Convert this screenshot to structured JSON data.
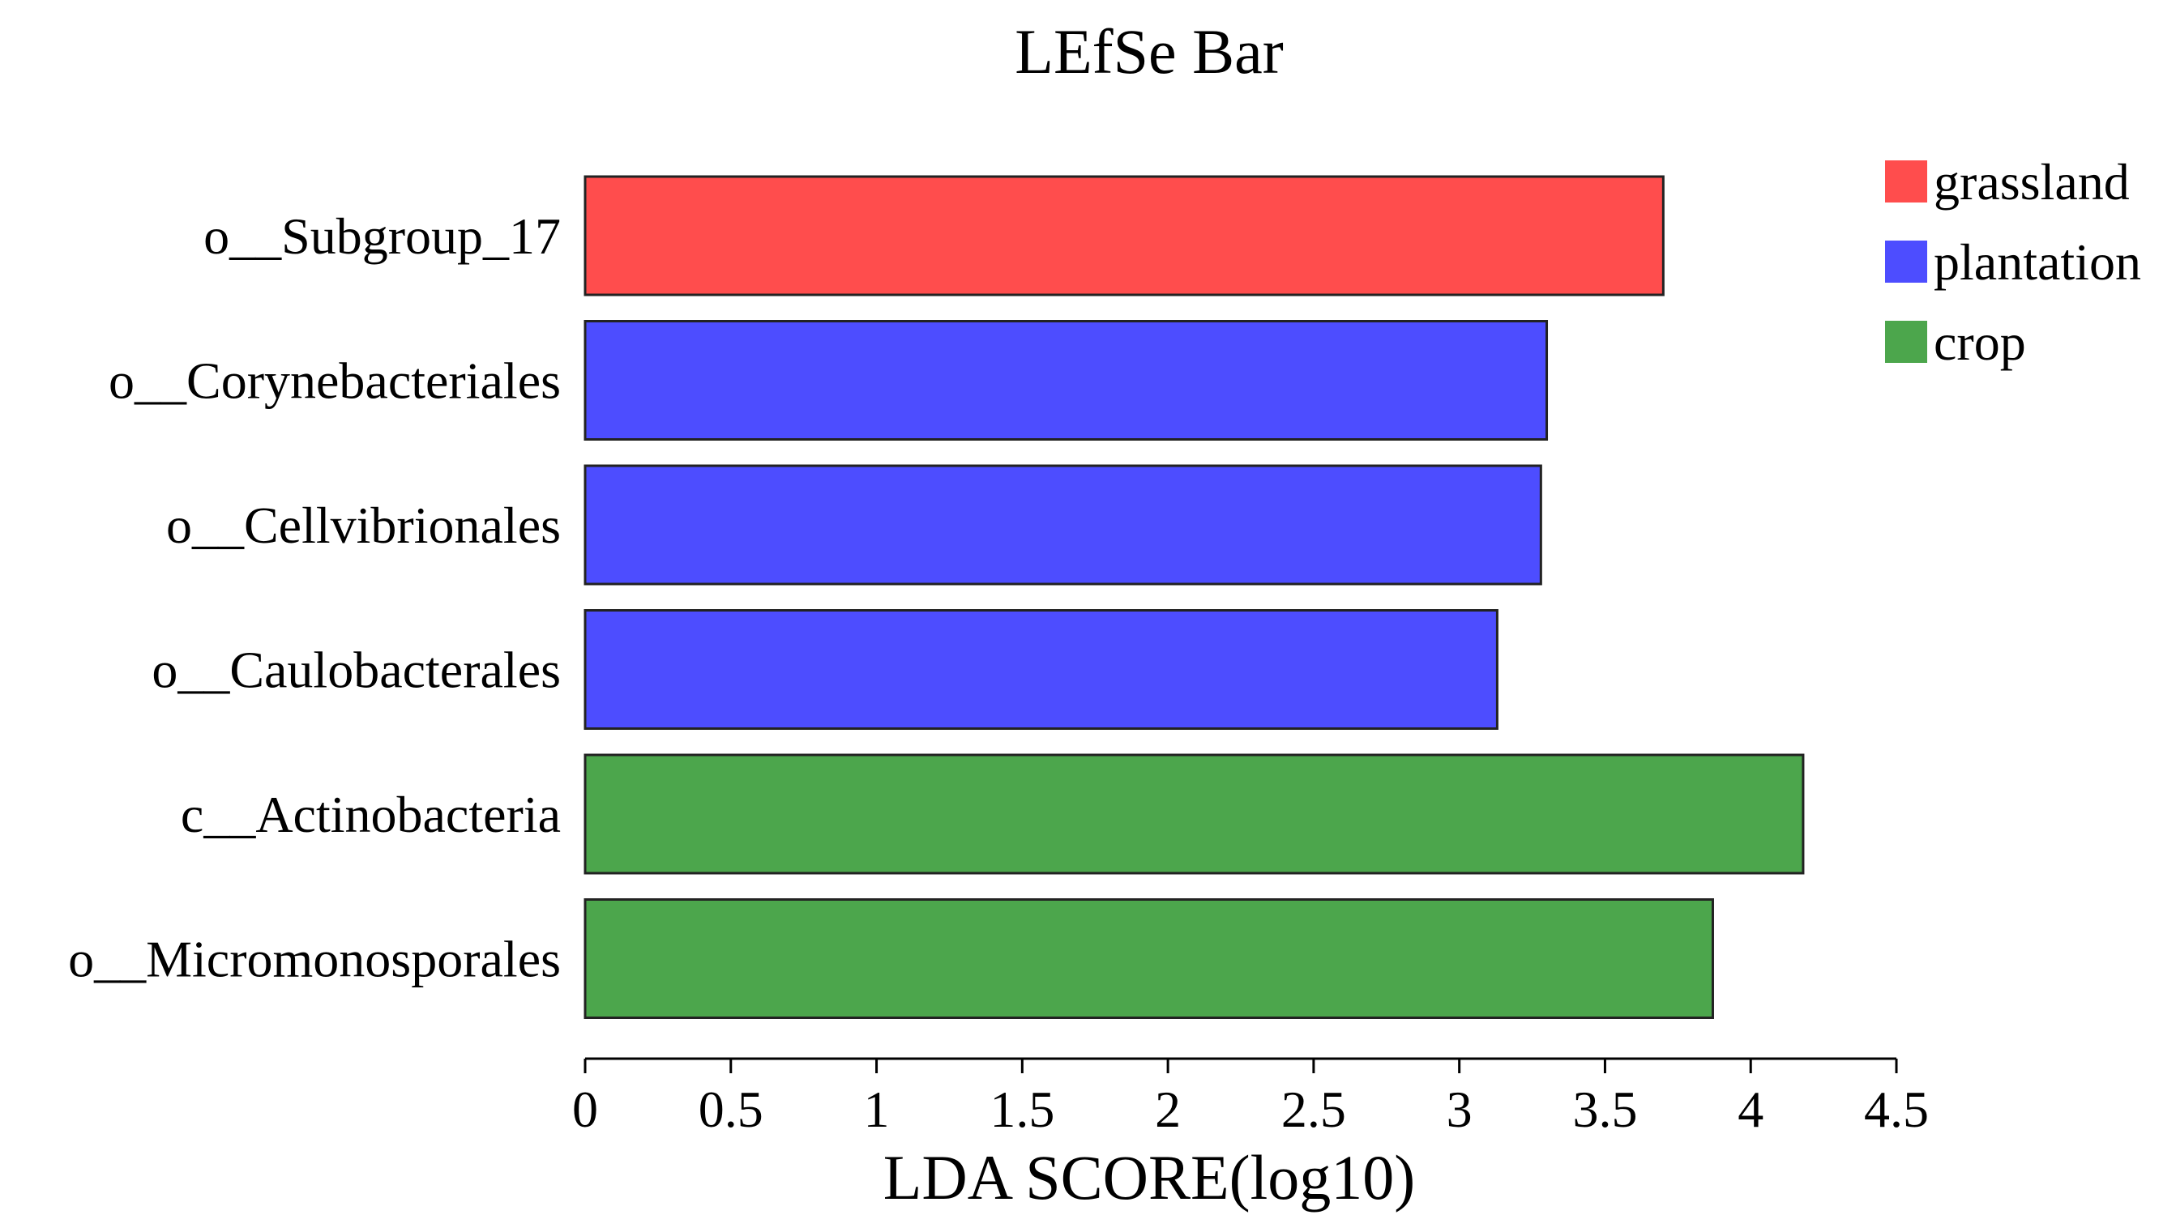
{
  "chart_data": {
    "type": "bar",
    "orientation": "horizontal",
    "title": "LEfSe Bar",
    "xlabel": "LDA SCORE(log10)",
    "ylabel": "",
    "xlim": [
      0,
      4.5
    ],
    "xticks": [
      0,
      0.5,
      1,
      1.5,
      2,
      2.5,
      3,
      3.5,
      4,
      4.5
    ],
    "xtick_labels": [
      "0",
      "0.5",
      "1",
      "1.5",
      "2",
      "2.5",
      "3",
      "3.5",
      "4",
      "4.5"
    ],
    "grid": false,
    "legend_position": "top-right",
    "categories": [
      "o__Subgroup_17",
      "o__Corynebacteriales",
      "o__Cellvibrionales",
      "o__Caulobacterales",
      "c__Actinobacteria",
      "o__Micromonosporales"
    ],
    "values": [
      3.7,
      3.3,
      3.28,
      3.13,
      4.18,
      3.87
    ],
    "groups": [
      "grassland",
      "plantation",
      "plantation",
      "plantation",
      "crop",
      "crop"
    ],
    "legend": [
      {
        "name": "grassland",
        "color": "#ff4d4d"
      },
      {
        "name": "plantation",
        "color": "#4d4dff"
      },
      {
        "name": "crop",
        "color": "#4ca64c"
      }
    ]
  }
}
